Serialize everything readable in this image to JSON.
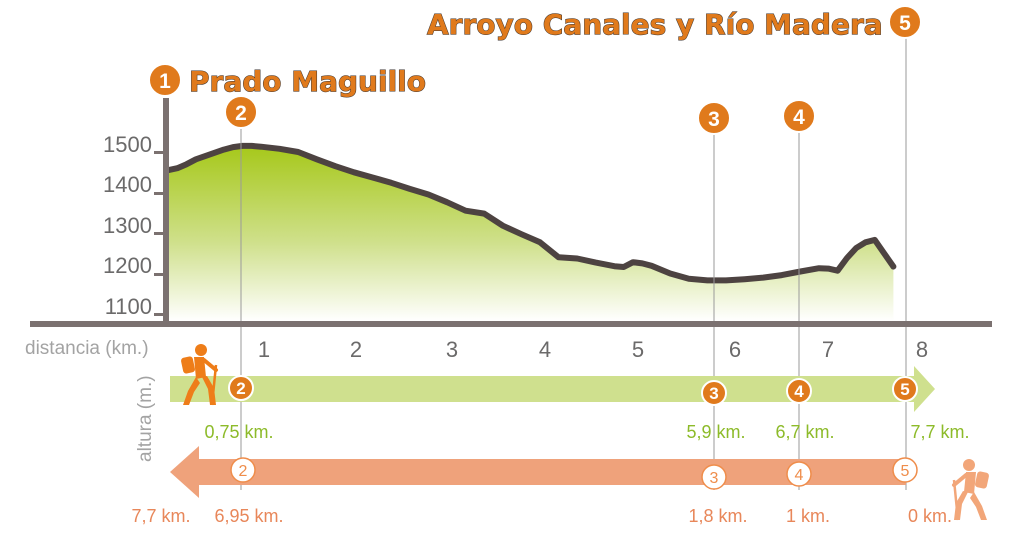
{
  "titles": {
    "start_name": "Prado Maguillo",
    "start_number": "1",
    "end_name": "Arroyo Canales y Río Madera",
    "end_number": "5"
  },
  "axis_labels": {
    "x": "distancia (km.)",
    "y": "altura (m.)"
  },
  "forward_route": {
    "direction": "right",
    "markers": [
      {
        "number": "2",
        "label": "0,75 km."
      },
      {
        "number": "3",
        "label": "5,9 km."
      },
      {
        "number": "4",
        "label": "6,7 km."
      },
      {
        "number": "5",
        "label": "7,7 km."
      }
    ]
  },
  "return_route": {
    "direction": "left",
    "start_label": "7,7 km.",
    "markers": [
      {
        "number": "2",
        "label": "6,95 km."
      },
      {
        "number": "3",
        "label": "1,8 km."
      },
      {
        "number": "4",
        "label": "1 km."
      },
      {
        "number": "5",
        "label": "0 km."
      }
    ]
  },
  "colors": {
    "accent_orange": "#e07a1c",
    "profile_line": "#4d4341",
    "fill_green": "#a6c81a",
    "forward_arrow": "#cfe08e",
    "return_arrow": "#efa27b",
    "axis": "#7b7170"
  },
  "icons": [
    "hiker-icon-forward",
    "hiker-icon-return"
  ],
  "chart_data": {
    "type": "area",
    "xlabel": "distancia (km.)",
    "ylabel": "altura (m.)",
    "xlim": [
      0,
      8.6
    ],
    "ylim": [
      1060,
      1560
    ],
    "xticks": [
      1,
      2,
      3,
      4,
      5,
      6,
      7,
      8
    ],
    "yticks": [
      1100,
      1200,
      1300,
      1400,
      1500
    ],
    "grid": false,
    "series": [
      {
        "x": [
          0,
          0.1,
          0.2,
          0.3,
          0.4,
          0.5,
          0.6,
          0.7,
          0.8,
          0.9,
          1.0,
          1.2,
          1.4,
          1.6,
          1.8,
          2.0,
          2.2,
          2.4,
          2.6,
          2.8,
          3.0,
          3.2,
          3.4,
          3.6,
          3.8,
          4.0,
          4.2,
          4.4,
          4.6,
          4.8,
          4.9,
          5.0,
          5.1,
          5.2,
          5.4,
          5.6,
          5.8,
          6.0,
          6.2,
          6.4,
          6.6,
          6.8,
          7.0,
          7.1,
          7.2,
          7.3,
          7.4,
          7.5,
          7.6,
          7.7,
          7.8
        ],
        "y": [
          1455,
          1460,
          1470,
          1482,
          1490,
          1498,
          1506,
          1512,
          1515,
          1515,
          1513,
          1508,
          1500,
          1482,
          1465,
          1450,
          1437,
          1424,
          1409,
          1395,
          1376,
          1355,
          1348,
          1318,
          1297,
          1277,
          1240,
          1237,
          1227,
          1218,
          1216,
          1228,
          1225,
          1219,
          1200,
          1187,
          1183,
          1183,
          1186,
          1190,
          1196,
          1205,
          1213,
          1212,
          1207,
          1238,
          1263,
          1277,
          1283,
          1250,
          1217
        ]
      }
    ],
    "waypoints": [
      {
        "number": "1",
        "x": 0
      },
      {
        "number": "2",
        "x": 0.75
      },
      {
        "number": "3",
        "x": 5.9
      },
      {
        "number": "4",
        "x": 6.7
      },
      {
        "number": "5",
        "x": 7.7
      }
    ]
  }
}
